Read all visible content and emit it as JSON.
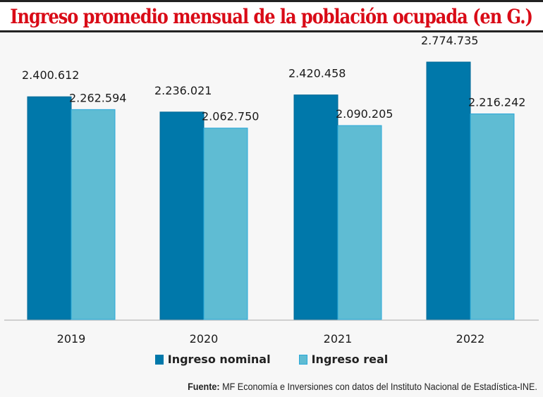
{
  "title": "Ingreso promedio mensual de la población ocupada (en G.)",
  "source_label": "Fuente:",
  "source_text": "MF Economía e Inversiones con datos del Instituto Nacional de Estadística-INE.",
  "chart_data": {
    "type": "bar",
    "title": "Ingreso promedio mensual de la población ocupada (en G.)",
    "xlabel": "",
    "ylabel": "",
    "categories": [
      "2019",
      "2020",
      "2021",
      "2022"
    ],
    "series": [
      {
        "name": "Ingreso nominal",
        "color": "#0078aa",
        "values": [
          2400612,
          2236021,
          2420458,
          2774735
        ],
        "labels": [
          "2.400.612",
          "2.236.021",
          "2.420.458",
          "2.774.735"
        ]
      },
      {
        "name": "Ingreso real",
        "color": "#5fbcd3",
        "values": [
          2262594,
          2062750,
          2090205,
          2216242
        ],
        "labels": [
          "2.262.594",
          "2.062.750",
          "2.090.205",
          "2.216.242"
        ]
      }
    ],
    "ylim": [
      0,
      2900000
    ],
    "grid": false,
    "legend": "bottom-center"
  }
}
